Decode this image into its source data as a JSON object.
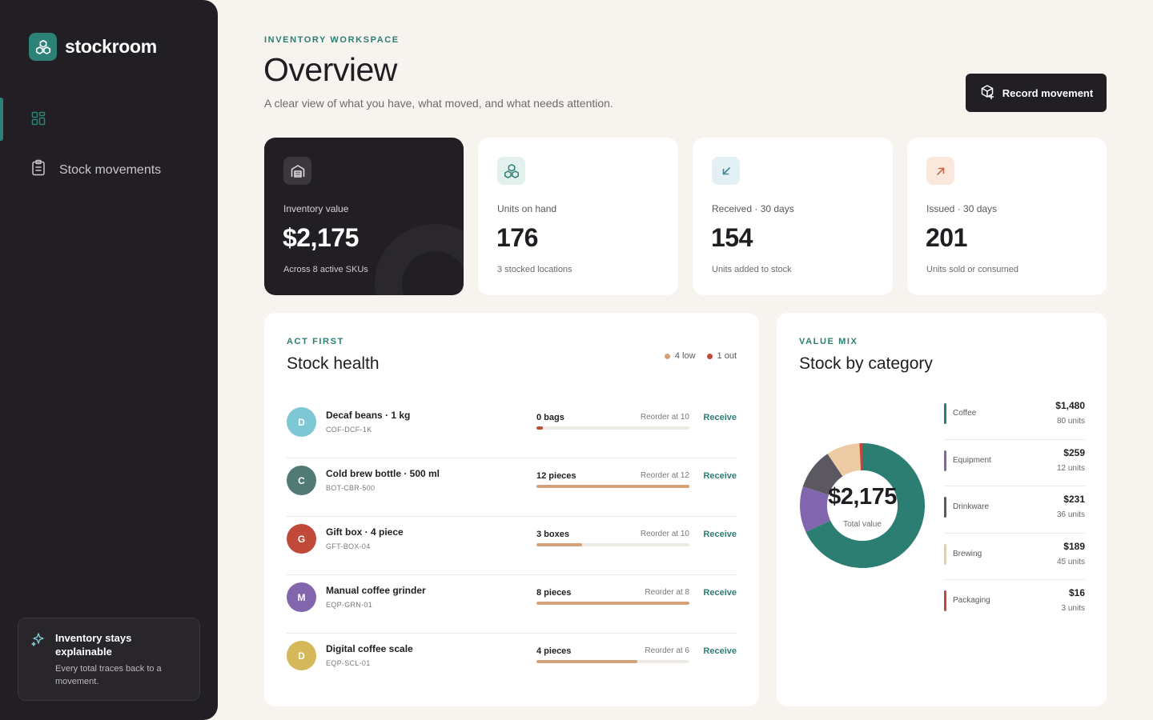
{
  "app": {
    "name": "stockroom"
  },
  "sidebar": {
    "items": [
      {
        "label": "",
        "icon": "grid-icon",
        "active": true
      },
      {
        "label": "Stock movements",
        "icon": "clipboard-icon",
        "active": false
      }
    ],
    "promo": {
      "title": "Inventory stays explainable",
      "text": "Every total traces back to a movement."
    }
  },
  "header": {
    "eyebrow": "INVENTORY WORKSPACE",
    "title": "Overview",
    "subtitle": "A clear view of what you have, what moved, and what needs attention.",
    "action_label": "Record movement"
  },
  "kpis": [
    {
      "label": "Inventory value",
      "value": "$2,175",
      "note": "Across 8 active SKUs",
      "icon": "warehouse-icon"
    },
    {
      "label": "Units on hand",
      "value": "176",
      "note": "3 stocked locations",
      "icon": "boxes-icon"
    },
    {
      "label": "Received · 30 days",
      "value": "154",
      "note": "Units added to stock",
      "icon": "arrow-down-left-icon"
    },
    {
      "label": "Issued · 30 days",
      "value": "201",
      "note": "Units sold or consumed",
      "icon": "arrow-up-right-icon"
    }
  ],
  "health": {
    "eyebrow": "ACT FIRST",
    "title": "Stock health",
    "legend": [
      {
        "label": "4 low",
        "color": "#d4a27a"
      },
      {
        "label": "1 out",
        "color": "#c0493a"
      }
    ],
    "action_label": "Receive",
    "items": [
      {
        "initial": "D",
        "name": "Decaf beans · 1 kg",
        "sku": "COF-DCF-1K",
        "qty": "0 bags",
        "reorder": "Reorder at 10",
        "fill": 0.04,
        "color": "#7ec8d6",
        "bar_color": "#c0493a"
      },
      {
        "initial": "C",
        "name": "Cold brew bottle · 500 ml",
        "sku": "BOT-CBR-500",
        "qty": "12 pieces",
        "reorder": "Reorder at 12",
        "fill": 1.0,
        "color": "#527a75",
        "bar_color": "#d4a27a"
      },
      {
        "initial": "G",
        "name": "Gift box · 4 piece",
        "sku": "GFT-BOX-04",
        "qty": "3 boxes",
        "reorder": "Reorder at 10",
        "fill": 0.3,
        "color": "#c0493a",
        "bar_color": "#d4a27a"
      },
      {
        "initial": "M",
        "name": "Manual coffee grinder",
        "sku": "EQP-GRN-01",
        "qty": "8 pieces",
        "reorder": "Reorder at 8",
        "fill": 1.0,
        "color": "#8266ad",
        "bar_color": "#d4a27a"
      },
      {
        "initial": "D",
        "name": "Digital coffee scale",
        "sku": "EQP-SCL-01",
        "qty": "4 pieces",
        "reorder": "Reorder at 6",
        "fill": 0.66,
        "color": "#d5b85a",
        "bar_color": "#d4a27a"
      }
    ]
  },
  "category": {
    "eyebrow": "VALUE MIX",
    "title": "Stock by category",
    "total_value": "$2,175",
    "total_label": "Total value",
    "items": [
      {
        "name": "Coffee",
        "value": "$1,480",
        "units": "80 units",
        "amount": 1480,
        "color": "#2c7e73"
      },
      {
        "name": "Equipment",
        "value": "$259",
        "units": "12 units",
        "amount": 259,
        "color": "#8266ad"
      },
      {
        "name": "Drinkware",
        "value": "$231",
        "units": "36 units",
        "amount": 231,
        "color": "#5b5862"
      },
      {
        "name": "Brewing",
        "value": "$189",
        "units": "45 units",
        "amount": 189,
        "color": "#edcba5"
      },
      {
        "name": "Packaging",
        "value": "$16",
        "units": "3 units",
        "amount": 16,
        "color": "#c0493a"
      }
    ]
  }
}
